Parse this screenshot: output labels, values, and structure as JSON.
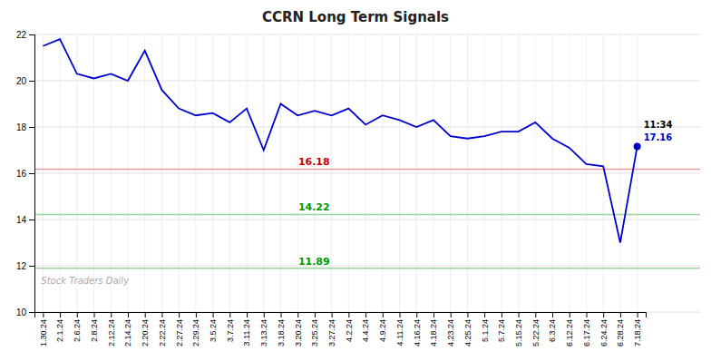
{
  "chart_data": {
    "type": "line",
    "title": "CCRN Long Term Signals",
    "categories": [
      "1.30.24",
      "2.1.24",
      "2.6.24",
      "2.8.24",
      "2.12.24",
      "2.14.24",
      "2.20.24",
      "2.22.24",
      "2.27.24",
      "2.29.24",
      "3.5.24",
      "3.7.24",
      "3.11.24",
      "3.13.24",
      "3.18.24",
      "3.20.24",
      "3.25.24",
      "3.27.24",
      "4.2.24",
      "4.4.24",
      "4.9.24",
      "4.11.24",
      "4.16.24",
      "4.18.24",
      "4.23.24",
      "4.25.24",
      "5.1.24",
      "5.7.24",
      "5.15.24",
      "5.22.24",
      "6.3.24",
      "6.12.24",
      "6.17.24",
      "6.24.24",
      "6.28.24",
      "7.18.24"
    ],
    "values": [
      21.5,
      21.8,
      20.3,
      20.1,
      20.3,
      20.0,
      21.3,
      19.6,
      18.8,
      18.5,
      18.6,
      18.2,
      18.8,
      17.0,
      19.0,
      18.5,
      18.7,
      18.5,
      18.8,
      18.1,
      18.5,
      18.3,
      18.0,
      18.3,
      17.6,
      17.5,
      17.6,
      17.8,
      17.8,
      18.2,
      17.5,
      17.1,
      16.4,
      16.3,
      13.0,
      17.16
    ],
    "color": "#0000cc",
    "marker": "last",
    "ylim": [
      10,
      22
    ],
    "yticks": [
      10,
      12,
      14,
      16,
      18,
      20,
      22
    ],
    "grid": true,
    "annotations": [
      {
        "type": "hline",
        "value": 16.18,
        "label": "16.18",
        "color": "#cc0000"
      },
      {
        "type": "hline",
        "value": 14.22,
        "label": "14.22",
        "color": "#009900"
      },
      {
        "type": "hline",
        "value": 11.89,
        "label": "11.89",
        "color": "#009900"
      },
      {
        "type": "last_point",
        "text": "11:34"
      },
      {
        "type": "last_point",
        "value": 17.16,
        "label": "17.16"
      },
      {
        "type": "watermark",
        "text": "Stock Traders Daily"
      }
    ]
  }
}
